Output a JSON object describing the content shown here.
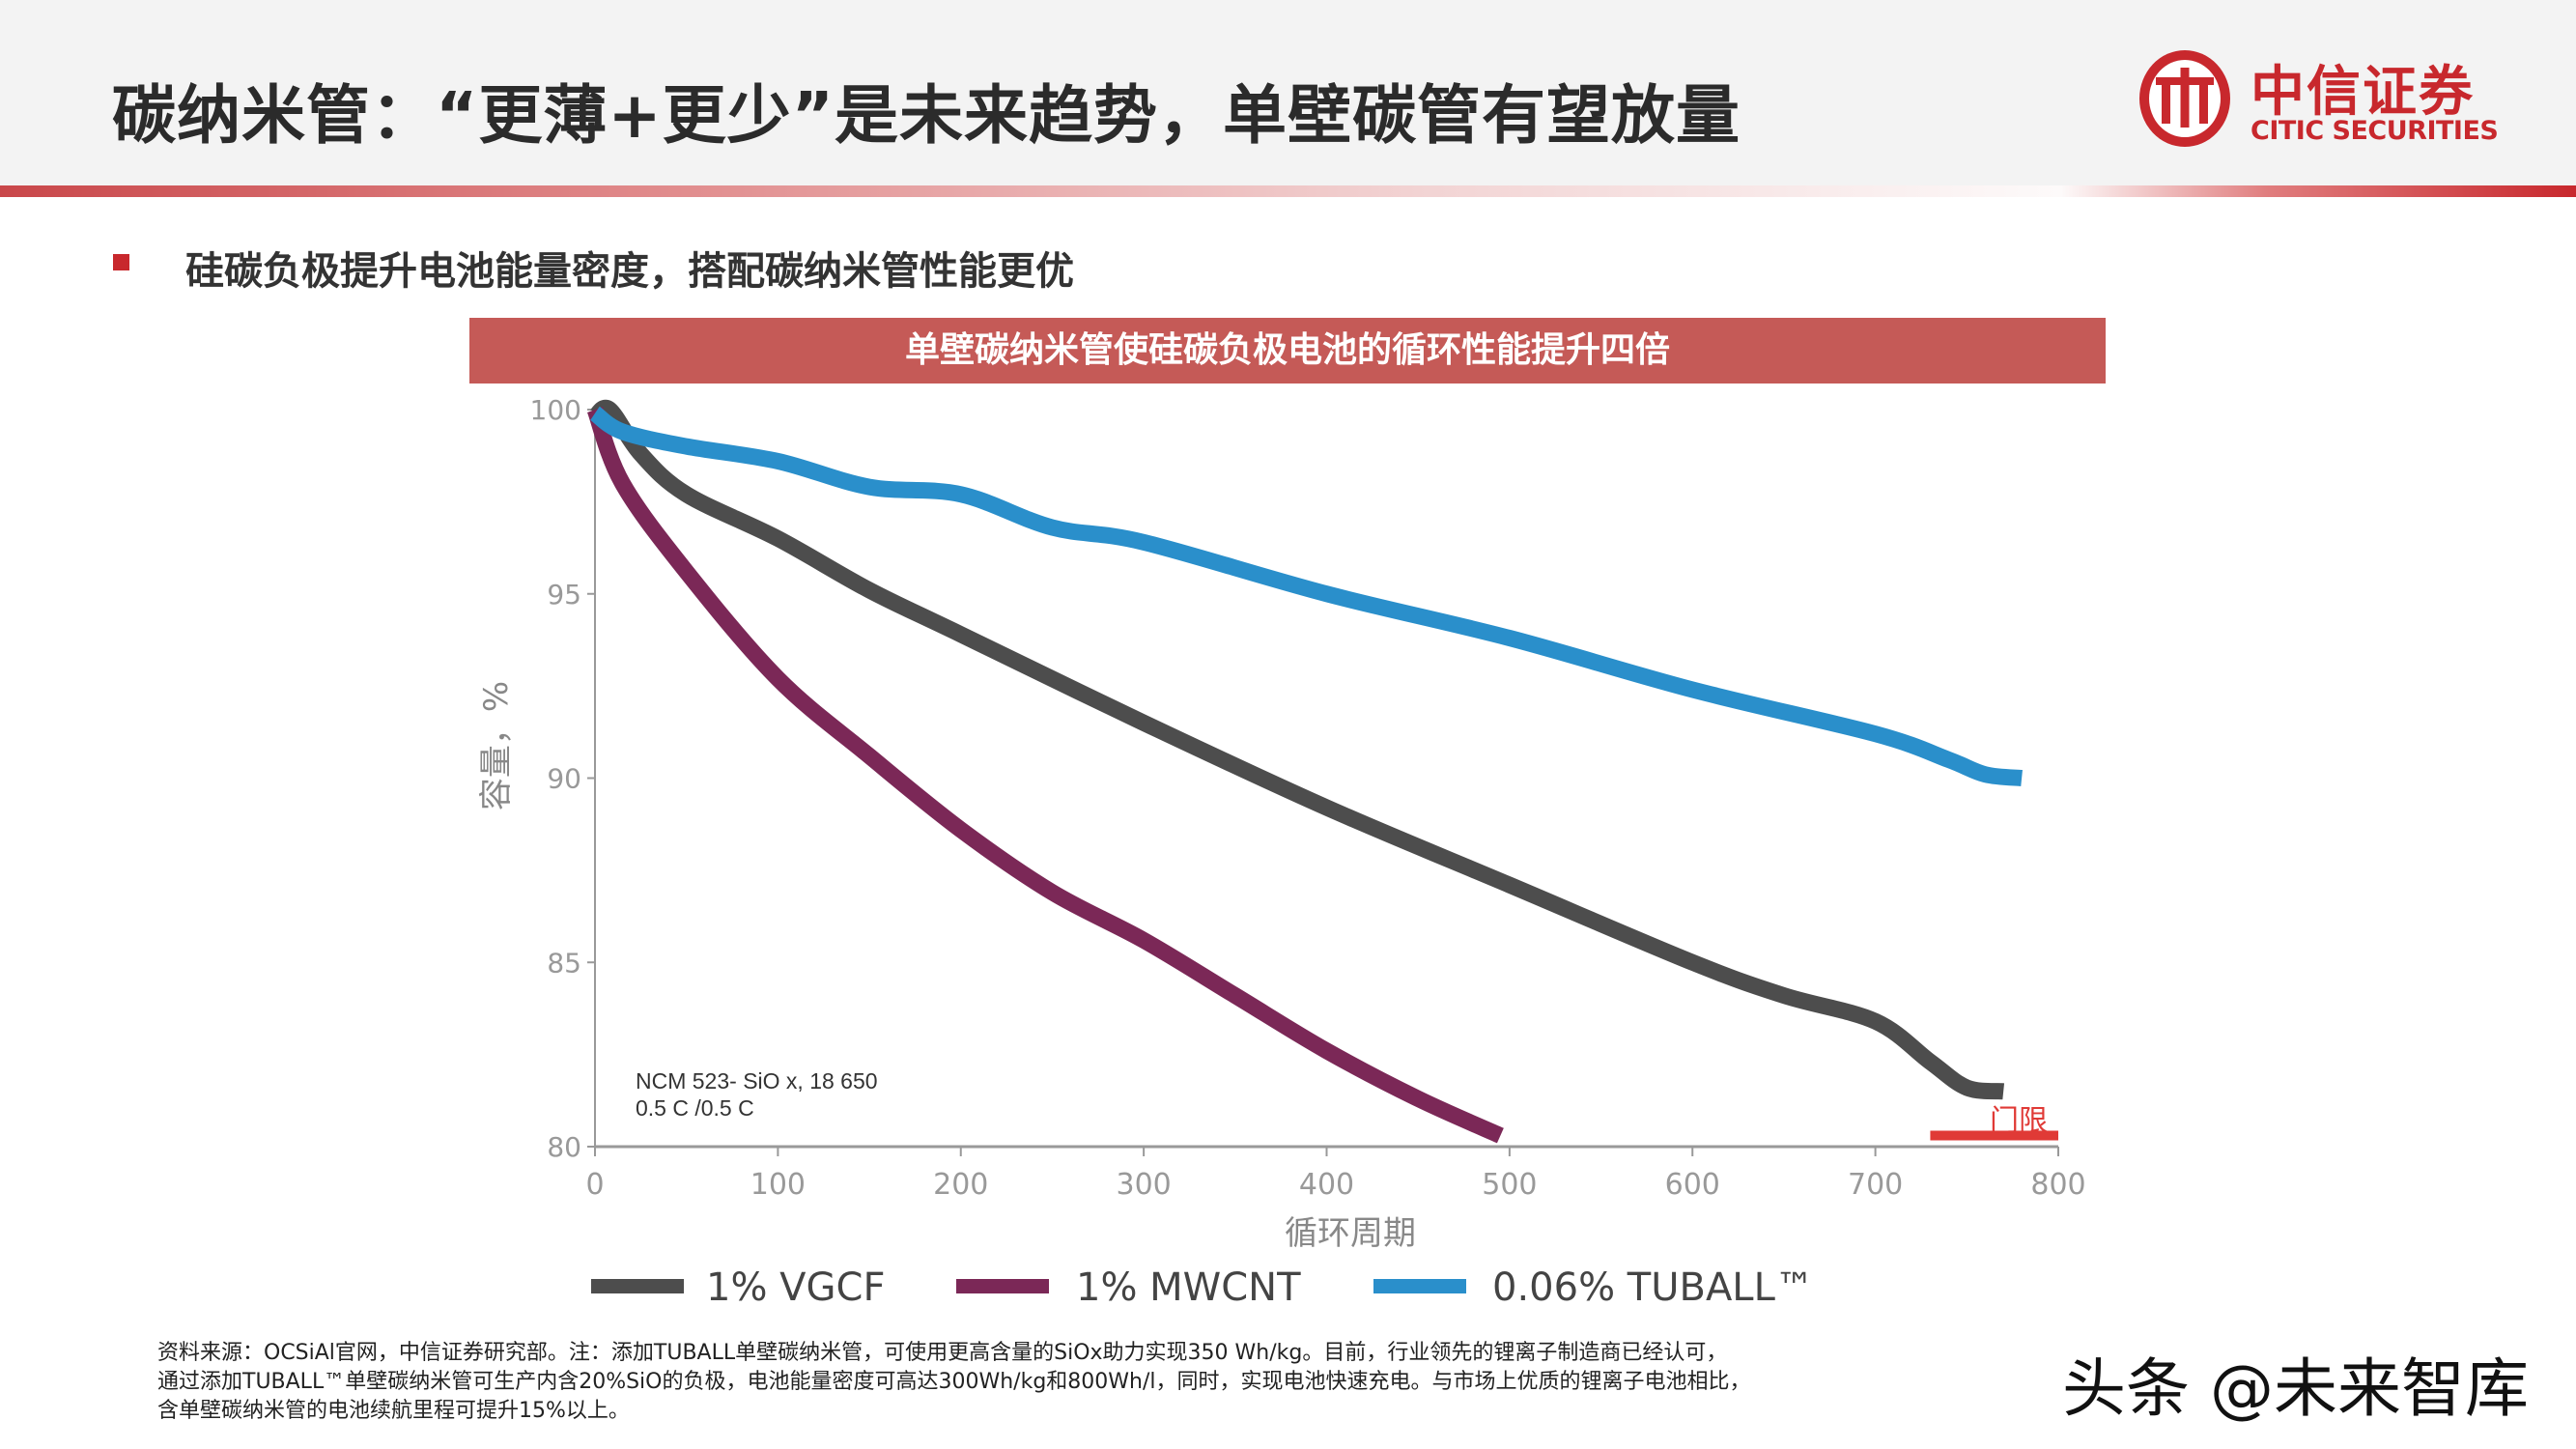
{
  "header": {
    "title": "碳纳米管：“更薄+更少”是未来趋势，单壁碳管有望放量",
    "logo_cn": "中信证券",
    "logo_en": "CITIC SECURITIES"
  },
  "subtitle": "硅碳负极提升电池能量密度，搭配碳纳米管性能更优",
  "banner": "单壁碳纳米管使硅碳负极电池的循环性能提升四倍",
  "chart_data": {
    "type": "line",
    "title": "",
    "xlabel": "循环周期",
    "ylabel": "容量，%",
    "xlim": [
      0,
      800
    ],
    "ylim": [
      80,
      100
    ],
    "xticks": [
      "0",
      "100",
      "200",
      "300",
      "400",
      "500",
      "600",
      "700",
      "800"
    ],
    "yticks": [
      "80",
      "85",
      "90",
      "95",
      "100"
    ],
    "grid": false,
    "legend_position": "bottom",
    "annotation": [
      "NCM 523-  SiO x, 18 650",
      "0.5 C /0.5 C"
    ],
    "threshold": {
      "label": "门限",
      "value": 80.3,
      "x_range": [
        730,
        800
      ],
      "color": "#e03a36"
    },
    "series": [
      {
        "name": "1% VGCF",
        "color": "#4d4d4d",
        "points": [
          [
            0,
            99.8
          ],
          [
            8,
            100
          ],
          [
            25,
            98.8
          ],
          [
            50,
            97.7
          ],
          [
            100,
            96.5
          ],
          [
            150,
            95.1
          ],
          [
            200,
            93.9
          ],
          [
            300,
            91.5
          ],
          [
            400,
            89.2
          ],
          [
            500,
            87.1
          ],
          [
            600,
            85.0
          ],
          [
            650,
            84.1
          ],
          [
            700,
            83.4
          ],
          [
            730,
            82.3
          ],
          [
            750,
            81.6
          ],
          [
            770,
            81.5
          ]
        ]
      },
      {
        "name": "1% MWCNT",
        "color": "#7b2857",
        "points": [
          [
            0,
            100
          ],
          [
            15,
            98
          ],
          [
            50,
            95.6
          ],
          [
            100,
            92.7
          ],
          [
            150,
            90.6
          ],
          [
            200,
            88.6
          ],
          [
            250,
            86.9
          ],
          [
            300,
            85.6
          ],
          [
            350,
            84.1
          ],
          [
            400,
            82.6
          ],
          [
            450,
            81.3
          ],
          [
            495,
            80.3
          ]
        ]
      },
      {
        "name": "0.06% TUBALL™",
        "color": "#2a8fcb",
        "points": [
          [
            0,
            99.9
          ],
          [
            15,
            99.4
          ],
          [
            50,
            99
          ],
          [
            100,
            98.6
          ],
          [
            150,
            97.9
          ],
          [
            200,
            97.7
          ],
          [
            250,
            96.8
          ],
          [
            300,
            96.4
          ],
          [
            400,
            95.0
          ],
          [
            500,
            93.8
          ],
          [
            600,
            92.4
          ],
          [
            700,
            91.2
          ],
          [
            740,
            90.5
          ],
          [
            760,
            90.1
          ],
          [
            780,
            90.0
          ]
        ]
      }
    ]
  },
  "footer": {
    "lines": [
      "资料来源：OCSiAl官网，中信证券研究部。注：添加TUBALL单壁碳纳米管，可使用更高含量的SiOx助力实现350 Wh/kg。目前，行业领先的锂离子制造商已经认可，",
      "通过添加TUBALL™单壁碳纳米管可生产内含20%SiO的负极，电池能量密度可高达300Wh/kg和800Wh/l，同时，实现电池快速充电。与市场上优质的锂离子电池相比，",
      "含单壁碳纳米管的电池续航里程可提升15%以上。"
    ]
  },
  "watermark": "头条 @未来智库"
}
